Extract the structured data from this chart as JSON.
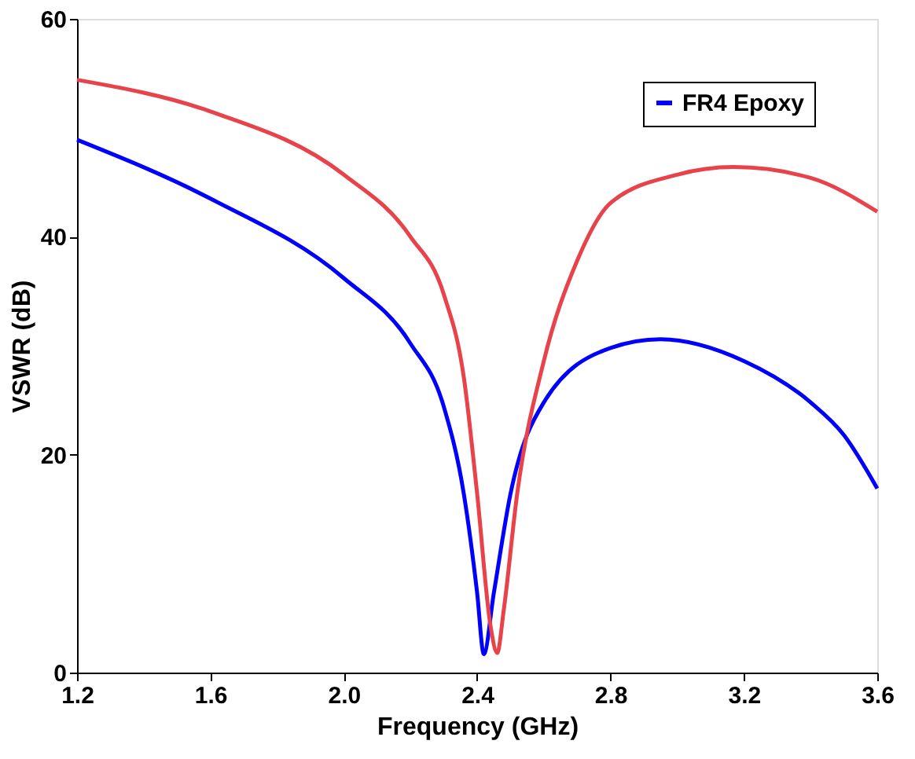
{
  "chart_data": {
    "type": "line",
    "xlabel": "Frequency (GHz)",
    "ylabel": "VSWR (dB)",
    "xlim": [
      1.2,
      3.6
    ],
    "ylim": [
      0,
      60
    ],
    "xticks": [
      1.2,
      1.6,
      {
        "value": 2,
        "label": "2.0"
      },
      2.4,
      2.8,
      3.2,
      3.6
    ],
    "yticks": [
      0,
      20,
      40,
      60
    ],
    "grid": false,
    "legend": "top right",
    "marker": "none",
    "line_style": "solid",
    "series": [
      {
        "name": "FR4 Epoxy",
        "color": "#0000ff",
        "x": [
          1.2,
          1.6,
          2.0,
          2.2,
          2.3,
          2.36,
          2.4,
          2.42,
          2.45,
          2.5,
          2.6,
          2.8,
          2.95,
          3.2,
          3.4,
          3.5,
          3.6
        ],
        "values": [
          48.9,
          43.5,
          36.2,
          30.2,
          24.4,
          16.4,
          7.3,
          1.7,
          7.3,
          16.4,
          24.8,
          29.8,
          30.6,
          28.6,
          24.8,
          21.8,
          16.9
        ]
      },
      {
        "color": "#e8434a",
        "x": [
          1.2,
          1.6,
          2.0,
          2.2,
          2.3,
          2.36,
          2.4,
          2.44,
          2.46,
          2.48,
          2.52,
          2.6,
          2.7,
          2.8,
          3.0,
          3.17,
          3.4,
          3.6
        ],
        "values": [
          54.4,
          51.5,
          45.7,
          40.0,
          34.7,
          27.1,
          16.4,
          4.3,
          1.8,
          5.8,
          16.4,
          28.6,
          37.8,
          43.1,
          45.7,
          46.4,
          45.4,
          42.3
        ]
      }
    ]
  }
}
